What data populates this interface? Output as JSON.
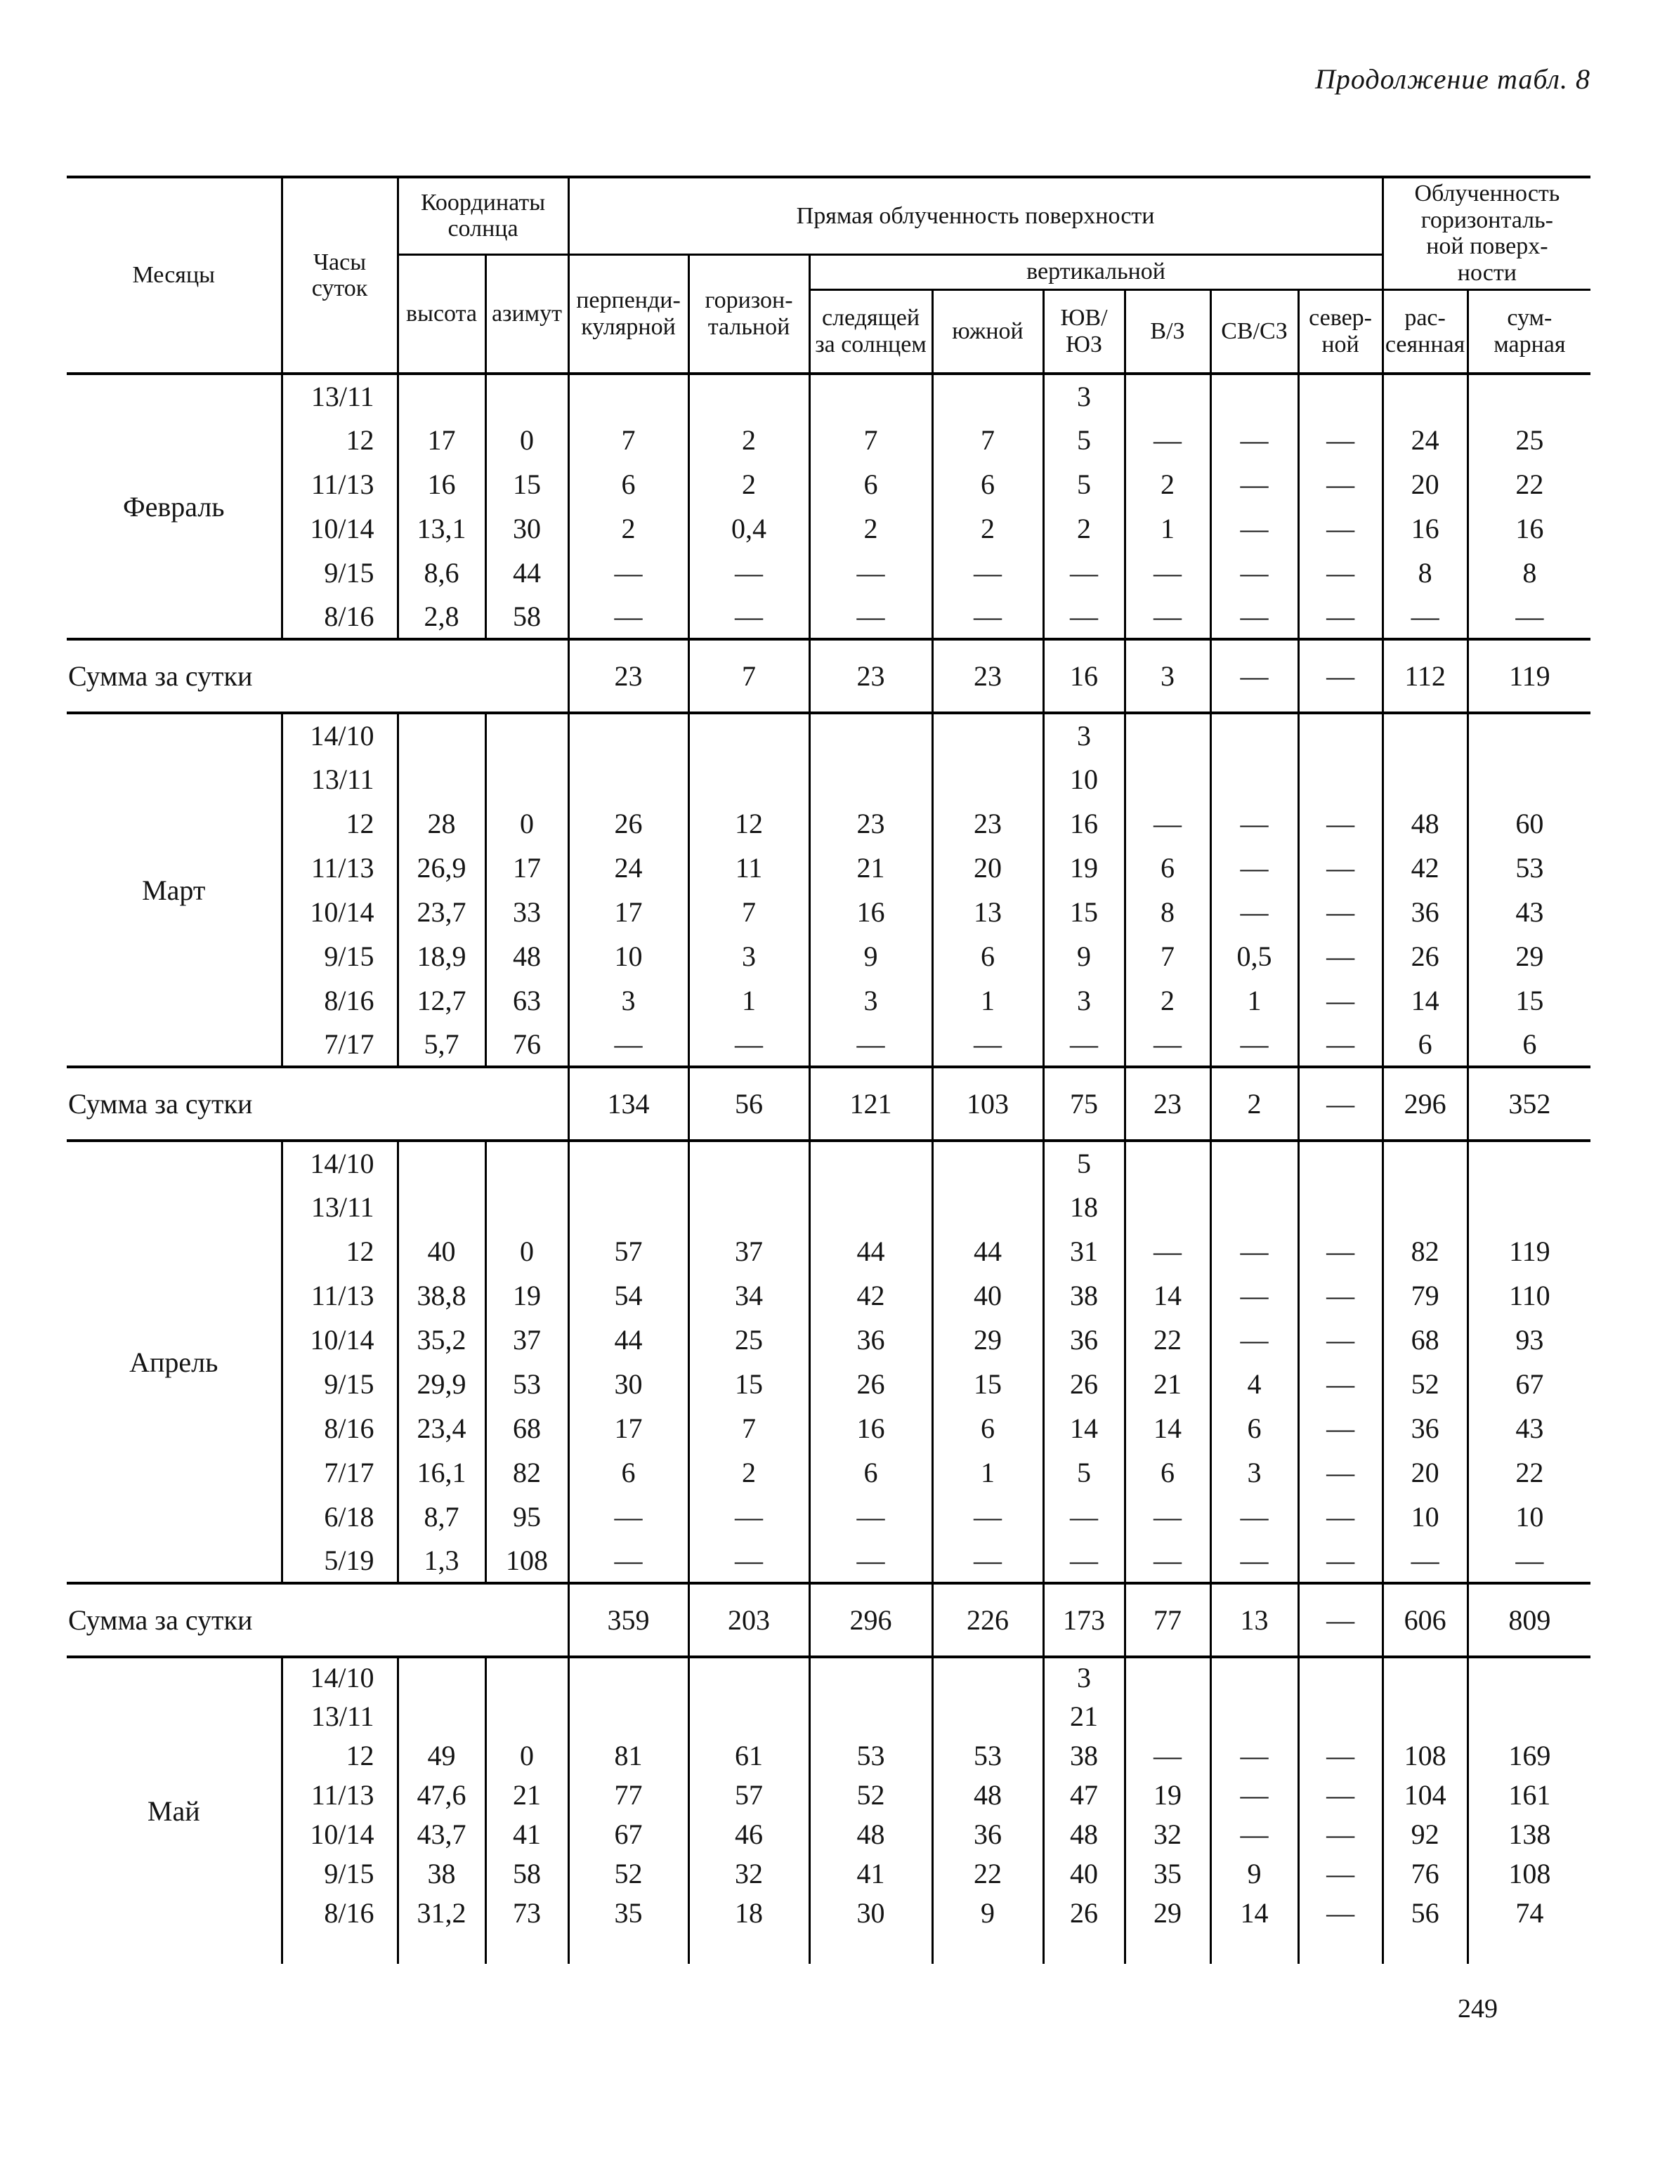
{
  "page": {
    "title": "Продолжение табл. 8",
    "page_number": "249"
  },
  "table": {
    "header": {
      "months": "Месяцы",
      "hours": "Часы\nсуток",
      "sun": "Координаты\nсолнца",
      "height": "высота",
      "azimuth": "азимут",
      "direct": "Прямая облученность поверхности",
      "perp": "перпенди-\nкулярной",
      "horiz": "горизон-\nтальной",
      "vertical": "вертикальной",
      "tracking": "следящей\nза солнцем",
      "south": "южной",
      "se_sw": "ЮВ/ЮЗ",
      "e_w": "В/З",
      "ne_nw": "СВ/СЗ",
      "north": "север-\nной",
      "horiz_irr": "Облученность\nгоризонталь-\nной поверх-\nности",
      "diffuse": "рас-\nсеянная",
      "total": "сум-\nмарная"
    },
    "sum_label": "Сумма за сутки",
    "blocks": [
      {
        "month": "Февраль",
        "rows": [
          {
            "hours": "13/11",
            "values": [
              "",
              "",
              "",
              "",
              "",
              "",
              "3",
              "",
              "",
              "",
              "",
              ""
            ]
          },
          {
            "hours": "12",
            "values": [
              "17",
              "0",
              "7",
              "2",
              "7",
              "7",
              "5",
              "—",
              "—",
              "—",
              "24",
              "25"
            ]
          },
          {
            "hours": "11/13",
            "values": [
              "16",
              "15",
              "6",
              "2",
              "6",
              "6",
              "5",
              "2",
              "—",
              "—",
              "20",
              "22"
            ]
          },
          {
            "hours": "10/14",
            "values": [
              "13,1",
              "30",
              "2",
              "0,4",
              "2",
              "2",
              "2",
              "1",
              "—",
              "—",
              "16",
              "16"
            ]
          },
          {
            "hours": "9/15",
            "values": [
              "8,6",
              "44",
              "—",
              "—",
              "—",
              "—",
              "—",
              "—",
              "—",
              "—",
              "8",
              "8"
            ]
          },
          {
            "hours": "8/16",
            "values": [
              "2,8",
              "58",
              "—",
              "—",
              "—",
              "—",
              "—",
              "—",
              "—",
              "—",
              "—",
              "—"
            ]
          }
        ],
        "sum": [
          "23",
          "7",
          "23",
          "23",
          "16",
          "3",
          "—",
          "—",
          "112",
          "119"
        ]
      },
      {
        "month": "Март",
        "rows": [
          {
            "hours": "14/10",
            "values": [
              "",
              "",
              "",
              "",
              "",
              "",
              "3",
              "",
              "",
              "",
              "",
              ""
            ]
          },
          {
            "hours": "13/11",
            "values": [
              "",
              "",
              "",
              "",
              "",
              "",
              "10",
              "",
              "",
              "",
              "",
              ""
            ]
          },
          {
            "hours": "12",
            "values": [
              "28",
              "0",
              "26",
              "12",
              "23",
              "23",
              "16",
              "—",
              "—",
              "—",
              "48",
              "60"
            ]
          },
          {
            "hours": "11/13",
            "values": [
              "26,9",
              "17",
              "24",
              "11",
              "21",
              "20",
              "19",
              "6",
              "—",
              "—",
              "42",
              "53"
            ]
          },
          {
            "hours": "10/14",
            "values": [
              "23,7",
              "33",
              "17",
              "7",
              "16",
              "13",
              "15",
              "8",
              "—",
              "—",
              "36",
              "43"
            ]
          },
          {
            "hours": "9/15",
            "values": [
              "18,9",
              "48",
              "10",
              "3",
              "9",
              "6",
              "9",
              "7",
              "0,5",
              "—",
              "26",
              "29"
            ]
          },
          {
            "hours": "8/16",
            "values": [
              "12,7",
              "63",
              "3",
              "1",
              "3",
              "1",
              "3",
              "2",
              "1",
              "—",
              "14",
              "15"
            ]
          },
          {
            "hours": "7/17",
            "values": [
              "5,7",
              "76",
              "—",
              "—",
              "—",
              "—",
              "—",
              "—",
              "—",
              "—",
              "6",
              "6"
            ]
          }
        ],
        "sum": [
          "134",
          "56",
          "121",
          "103",
          "75",
          "23",
          "2",
          "—",
          "296",
          "352"
        ]
      },
      {
        "month": "Апрель",
        "rows": [
          {
            "hours": "14/10",
            "values": [
              "",
              "",
              "",
              "",
              "",
              "",
              "5",
              "",
              "",
              "",
              "",
              ""
            ]
          },
          {
            "hours": "13/11",
            "values": [
              "",
              "",
              "",
              "",
              "",
              "",
              "18",
              "",
              "",
              "",
              "",
              ""
            ]
          },
          {
            "hours": "12",
            "values": [
              "40",
              "0",
              "57",
              "37",
              "44",
              "44",
              "31",
              "—",
              "—",
              "—",
              "82",
              "119"
            ]
          },
          {
            "hours": "11/13",
            "values": [
              "38,8",
              "19",
              "54",
              "34",
              "42",
              "40",
              "38",
              "14",
              "—",
              "—",
              "79",
              "110"
            ]
          },
          {
            "hours": "10/14",
            "values": [
              "35,2",
              "37",
              "44",
              "25",
              "36",
              "29",
              "36",
              "22",
              "—",
              "—",
              "68",
              "93"
            ]
          },
          {
            "hours": "9/15",
            "values": [
              "29,9",
              "53",
              "30",
              "15",
              "26",
              "15",
              "26",
              "21",
              "4",
              "—",
              "52",
              "67"
            ]
          },
          {
            "hours": "8/16",
            "values": [
              "23,4",
              "68",
              "17",
              "7",
              "16",
              "6",
              "14",
              "14",
              "6",
              "—",
              "36",
              "43"
            ]
          },
          {
            "hours": "7/17",
            "values": [
              "16,1",
              "82",
              "6",
              "2",
              "6",
              "1",
              "5",
              "6",
              "3",
              "—",
              "20",
              "22"
            ]
          },
          {
            "hours": "6/18",
            "values": [
              "8,7",
              "95",
              "—",
              "—",
              "—",
              "—",
              "—",
              "—",
              "—",
              "—",
              "10",
              "10"
            ]
          },
          {
            "hours": "5/19",
            "values": [
              "1,3",
              "108",
              "—",
              "—",
              "—",
              "—",
              "—",
              "—",
              "—",
              "—",
              "—",
              "—"
            ]
          }
        ],
        "sum": [
          "359",
          "203",
          "296",
          "226",
          "173",
          "77",
          "13",
          "—",
          "606",
          "809"
        ]
      },
      {
        "month": "Май",
        "rows": [
          {
            "hours": "14/10",
            "values": [
              "",
              "",
              "",
              "",
              "",
              "",
              "3",
              "",
              "",
              "",
              "",
              ""
            ]
          },
          {
            "hours": "13/11",
            "values": [
              "",
              "",
              "",
              "",
              "",
              "",
              "21",
              "",
              "",
              "",
              "",
              ""
            ]
          },
          {
            "hours": "12",
            "values": [
              "49",
              "0",
              "81",
              "61",
              "53",
              "53",
              "38",
              "—",
              "—",
              "—",
              "108",
              "169"
            ]
          },
          {
            "hours": "11/13",
            "values": [
              "47,6",
              "21",
              "77",
              "57",
              "52",
              "48",
              "47",
              "19",
              "—",
              "—",
              "104",
              "161"
            ]
          },
          {
            "hours": "10/14",
            "values": [
              "43,7",
              "41",
              "67",
              "46",
              "48",
              "36",
              "48",
              "32",
              "—",
              "—",
              "92",
              "138"
            ]
          },
          {
            "hours": "9/15",
            "values": [
              "38",
              "58",
              "52",
              "32",
              "41",
              "22",
              "40",
              "35",
              "9",
              "—",
              "76",
              "108"
            ]
          },
          {
            "hours": "8/16",
            "values": [
              "31,2",
              "73",
              "35",
              "18",
              "30",
              "9",
              "26",
              "29",
              "14",
              "—",
              "56",
              "74"
            ]
          }
        ],
        "sum": null
      }
    ]
  }
}
